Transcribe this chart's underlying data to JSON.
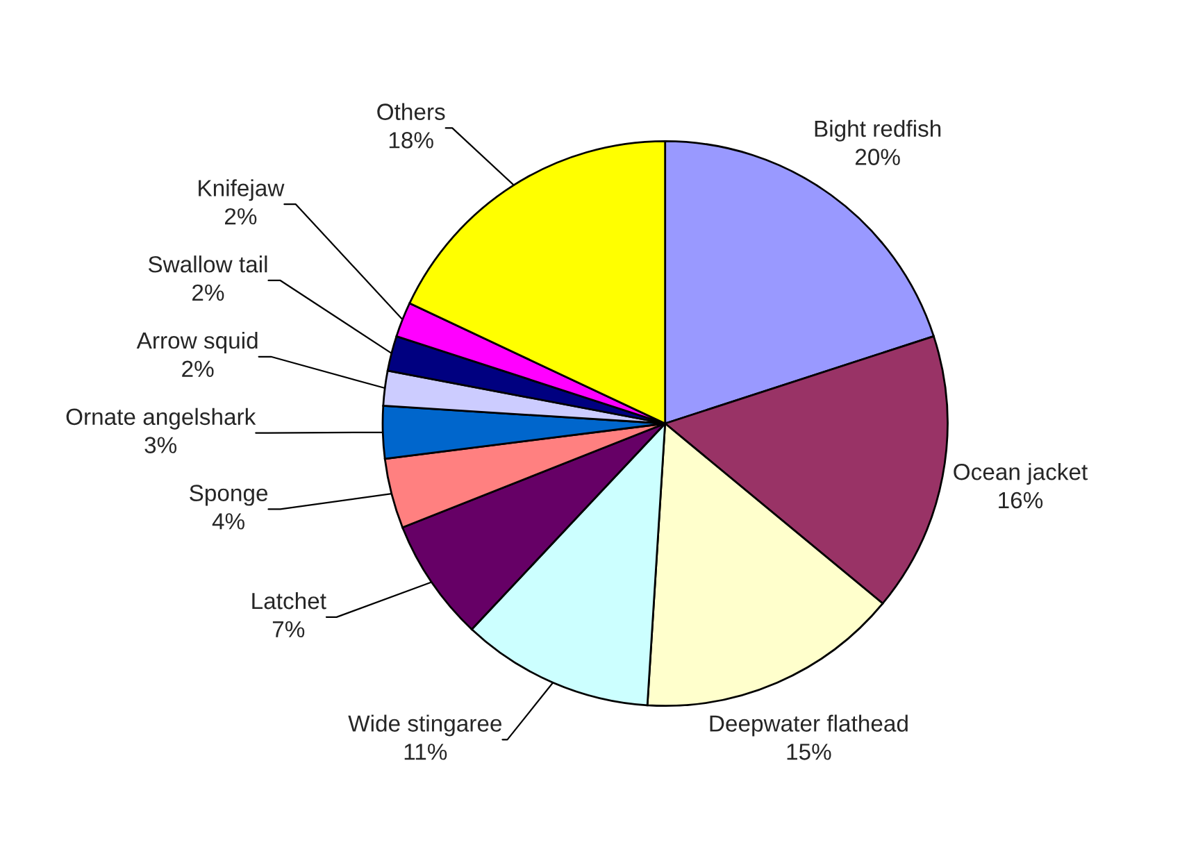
{
  "chart_data": {
    "type": "pie",
    "categories": [
      "Bight redfish",
      "Ocean jacket",
      "Deepwater flathead",
      "Wide stingaree",
      "Latchet",
      "Sponge",
      "Ornate angelshark",
      "Arrow squid",
      "Swallow tail",
      "Knifejaw",
      "Others"
    ],
    "values": [
      20,
      16,
      15,
      11,
      7,
      4,
      3,
      2,
      2,
      2,
      18
    ],
    "colors": [
      "#9999ff",
      "#993366",
      "#ffffcc",
      "#ccffff",
      "#660066",
      "#ff8080",
      "#0066cc",
      "#ccccff",
      "#000080",
      "#ff00ff",
      "#ffff00"
    ],
    "value_labels": [
      "20%",
      "16%",
      "15%",
      "11%",
      "7%",
      "4%",
      "3%",
      "2%",
      "2%",
      "2%",
      "18%"
    ]
  }
}
